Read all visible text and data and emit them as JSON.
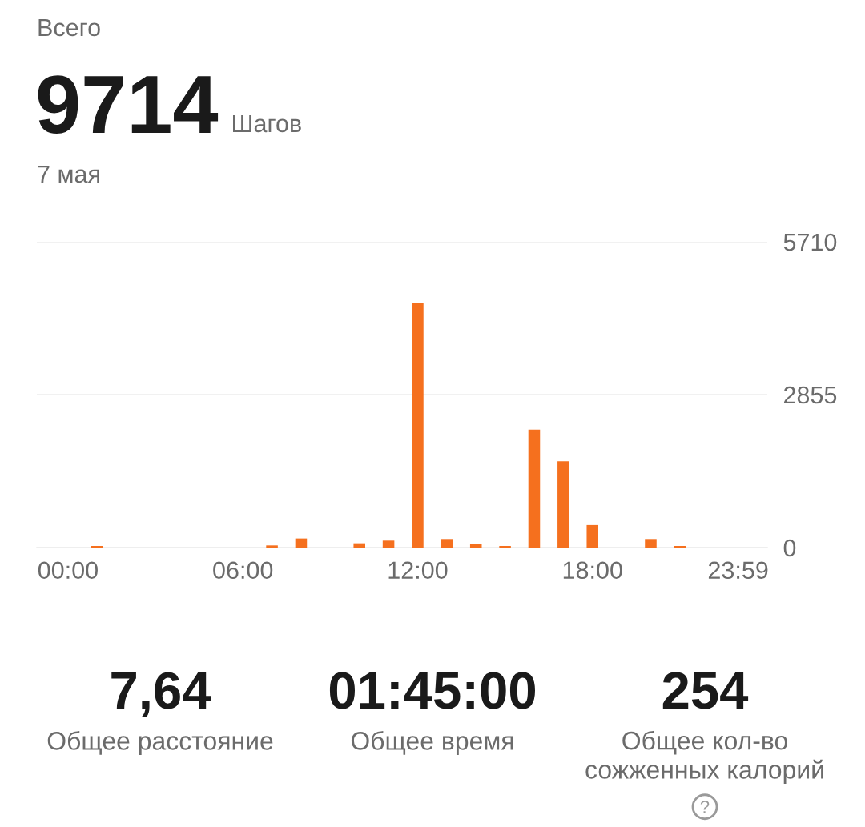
{
  "chart_data": [
    {
      "type": "other",
      "title": "Всего",
      "annotations": [
        "9714",
        "Шагов",
        "7 мая"
      ]
    },
    {
      "type": "bar",
      "categories": [
        "00:00",
        null,
        null,
        null,
        null,
        null,
        "06:00",
        null,
        null,
        null,
        null,
        null,
        "12:00",
        null,
        null,
        null,
        null,
        null,
        "18:00",
        null,
        null,
        null,
        null,
        "23:59"
      ],
      "values": [
        0,
        30,
        0,
        0,
        0,
        0,
        0,
        40,
        170,
        0,
        80,
        130,
        4570,
        160,
        60,
        30,
        2200,
        1610,
        420,
        0,
        160,
        30,
        0,
        0
      ],
      "color": "#f5701e",
      "ylim": [
        0,
        5710
      ],
      "yticks": [
        0,
        2855,
        5710
      ],
      "grid": "y"
    },
    {
      "type": "other",
      "annotations": [
        "7,64",
        "Общее расстояние",
        "01:45:00",
        "Общее время",
        "254",
        "Общее кол-во\nсожженных калорий"
      ]
    }
  ]
}
